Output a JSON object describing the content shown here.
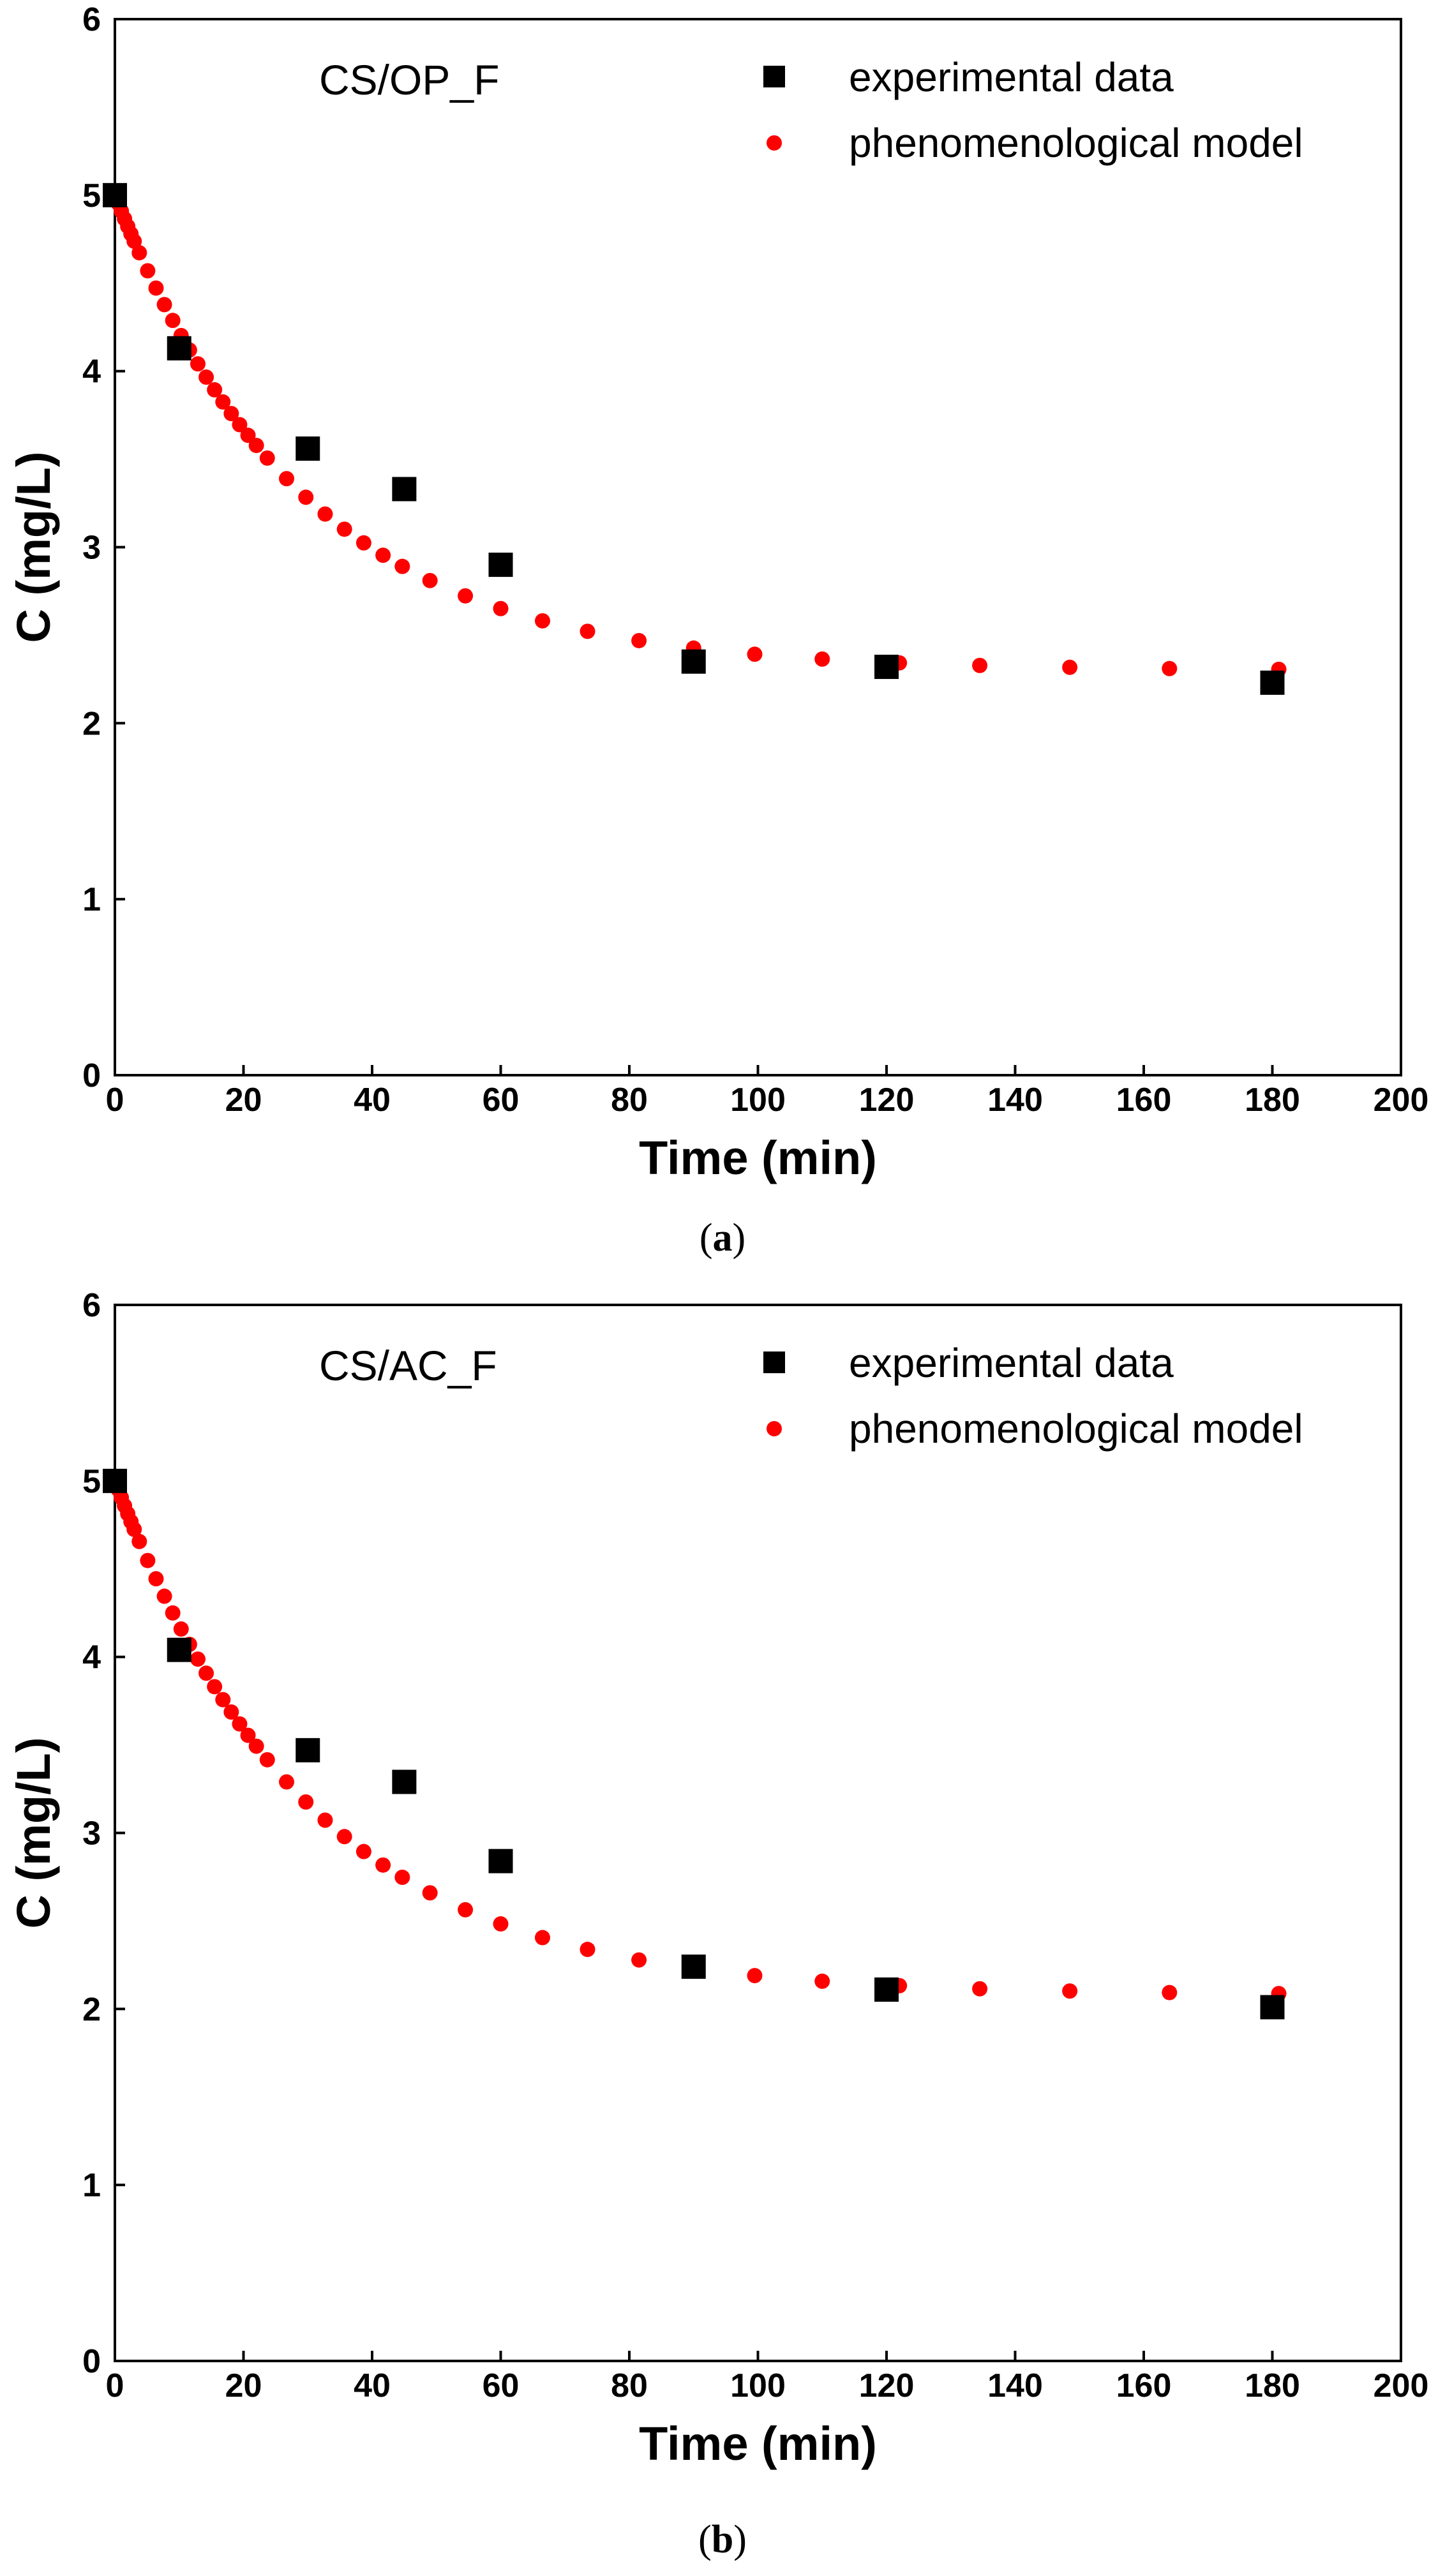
{
  "chart_data": [
    {
      "type": "scatter",
      "title": "CS/OP_F",
      "caption_open": "(",
      "caption_letter": "a",
      "caption_close": ")",
      "xlabel": "Time (min)",
      "ylabel": "C (mg/L)",
      "xlim": [
        0,
        200
      ],
      "ylim": [
        0,
        6
      ],
      "xticks": [
        0,
        20,
        40,
        60,
        80,
        100,
        120,
        140,
        160,
        180,
        200
      ],
      "yticks": [
        0,
        1,
        2,
        3,
        4,
        5,
        6
      ],
      "grid": false,
      "legend_position": "top-right",
      "series": [
        {
          "name": "experimental data",
          "marker": "square",
          "color": "#000000",
          "x": [
            0,
            10,
            30,
            45,
            60,
            90,
            120,
            180
          ],
          "y": [
            5.0,
            4.13,
            3.56,
            3.33,
            2.9,
            2.35,
            2.32,
            2.23
          ]
        },
        {
          "name": "phenomenological model",
          "marker": "circle",
          "color": "#ff0000",
          "model": {
            "c0": 5.0,
            "c_inf": 2.3,
            "k": 0.034
          }
        }
      ]
    },
    {
      "type": "scatter",
      "title": "CS/AC_F",
      "caption_open": "(",
      "caption_letter": "b",
      "caption_close": ")",
      "xlabel": "Time (min)",
      "ylabel": "C (mg/L)",
      "xlim": [
        0,
        200
      ],
      "ylim": [
        0,
        6
      ],
      "xticks": [
        0,
        20,
        40,
        60,
        80,
        100,
        120,
        140,
        160,
        180,
        200
      ],
      "yticks": [
        0,
        1,
        2,
        3,
        4,
        5,
        6
      ],
      "grid": false,
      "legend_position": "top-right",
      "series": [
        {
          "name": "experimental data",
          "marker": "square",
          "color": "#000000",
          "x": [
            0,
            10,
            30,
            45,
            60,
            90,
            120,
            180
          ],
          "y": [
            5.0,
            4.04,
            3.47,
            3.29,
            2.84,
            2.24,
            2.11,
            2.01
          ]
        },
        {
          "name": "phenomenological model",
          "marker": "circle",
          "color": "#ff0000",
          "model": {
            "c0": 5.0,
            "c_inf": 2.08,
            "k": 0.033
          }
        }
      ]
    }
  ]
}
